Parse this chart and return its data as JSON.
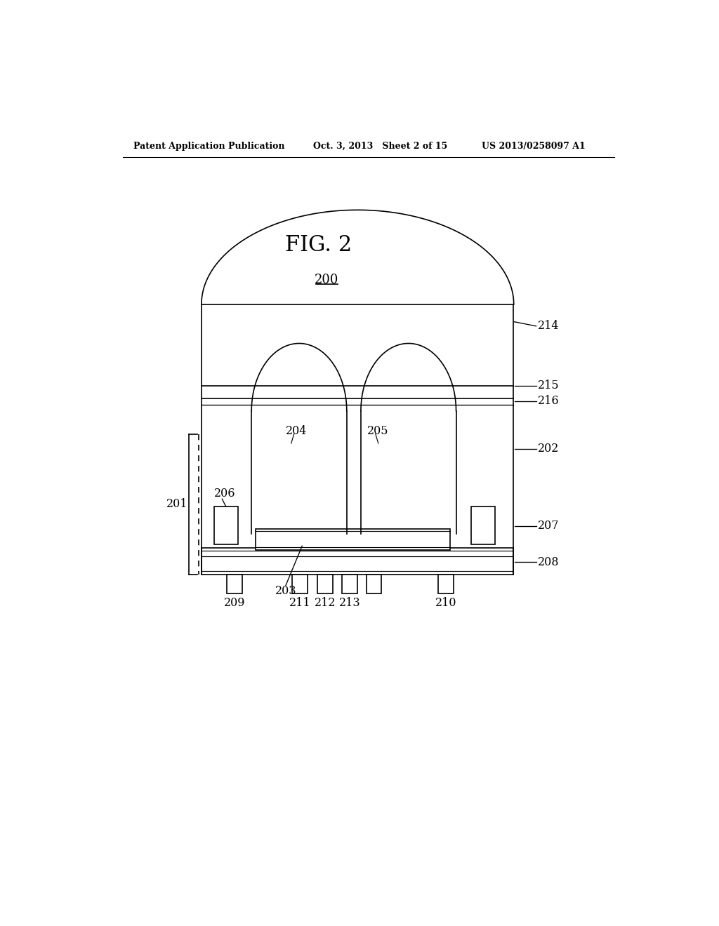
{
  "background_color": "#ffffff",
  "header_left": "Patent Application Publication",
  "header_mid": "Oct. 3, 2013   Sheet 2 of 15",
  "header_right": "US 2013/0258097 A1",
  "fig_label": "FIG. 2",
  "label_200": "200",
  "label_201": "201",
  "label_202": "202",
  "label_203": "203",
  "label_204": "204",
  "label_205": "205",
  "label_206": "206",
  "label_207": "207",
  "label_208": "208",
  "label_209": "209",
  "label_210": "210",
  "label_211": "211",
  "label_212": "212",
  "label_213": "213",
  "label_214": "214",
  "label_215": "215",
  "label_216": "216",
  "line_color": "#000000",
  "line_width": 1.2
}
